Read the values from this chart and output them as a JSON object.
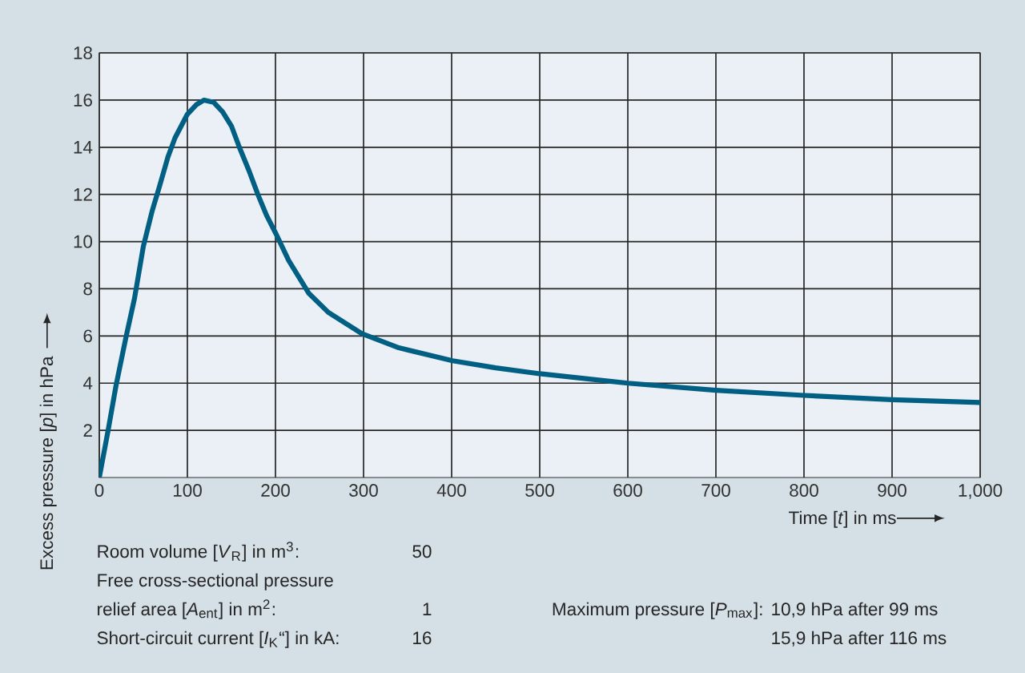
{
  "chart_data": {
    "type": "line",
    "xlabel": "Time [*t*] in ms",
    "ylabel": "Excess pressure [*p*] in hPa",
    "x": [
      0,
      10,
      19,
      30,
      40,
      50,
      60,
      68,
      78,
      86,
      100,
      110,
      119,
      130,
      140,
      150,
      159,
      170,
      180,
      190,
      201,
      215,
      238,
      260,
      298,
      340,
      401,
      450,
      500,
      550,
      600,
      650,
      700,
      800,
      900,
      1000
    ],
    "series": [
      {
        "color": "#005f83",
        "values": [
          0,
          2.0,
          3.9,
          5.9,
          7.6,
          9.8,
          11.3,
          12.3,
          13.6,
          14.4,
          15.4,
          15.8,
          16.0,
          15.9,
          15.5,
          14.9,
          14.0,
          13.0,
          12.0,
          11.1,
          10.3,
          9.2,
          7.8,
          7.0,
          6.1,
          5.5,
          4.95,
          4.65,
          4.4,
          4.2,
          4.0,
          3.85,
          3.7,
          3.48,
          3.3,
          3.18
        ]
      }
    ],
    "xlim": [
      0,
      1000
    ],
    "ylim": [
      0,
      18
    ],
    "xticks": [
      0,
      100,
      200,
      300,
      400,
      500,
      600,
      700,
      800,
      900,
      {
        "value": 1000,
        "label": "1,000"
      }
    ],
    "yticks": [
      2,
      4,
      6,
      8,
      10,
      12,
      14,
      16,
      18
    ],
    "grid": true,
    "line_style": "solid",
    "marker": "none",
    "annotations": [
      "Room volume [*V*$_{R}$] in m$^{3}$:",
      "50",
      "Free cross-sectional pressure",
      "relief area [*A*$_{ent}$] in m$^{2}$:",
      "1",
      "Short-circuit current [*I*$_{K}$“] in kA:",
      "16",
      "Maximum pressure [*P*$_{max}$]:",
      "10,9 hPa after 99 ms",
      "15,9 hPa after 116 ms"
    ]
  }
}
